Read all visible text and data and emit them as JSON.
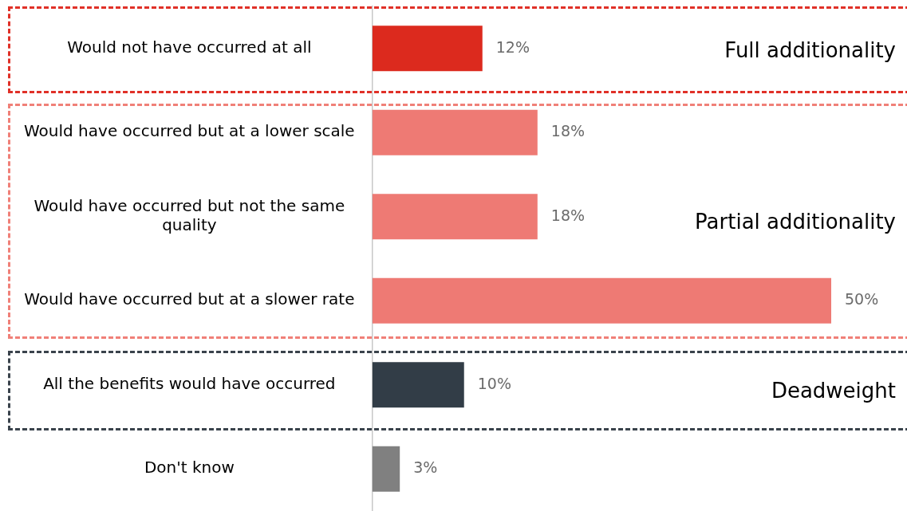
{
  "chart_data": {
    "type": "bar",
    "orientation": "horizontal",
    "categories": [
      "Would not have occurred at all",
      "Would have occurred but at a lower scale",
      "Would have occurred but not the same quality",
      "Would have occurred but at a slower rate",
      "All the benefits would have occurred",
      "Don't know"
    ],
    "values": [
      12,
      18,
      18,
      50,
      10,
      3
    ],
    "colors": [
      "#dc2a1e",
      "#ee7a74",
      "#ee7a74",
      "#ee7a74",
      "#323d47",
      "#808080"
    ],
    "value_labels": [
      "12%",
      "18%",
      "18%",
      "50%",
      "10%",
      "3%"
    ],
    "grid": false,
    "legend": false,
    "annotations": [
      "Full additionality",
      "Partial additionality",
      "Deadweight"
    ]
  }
}
